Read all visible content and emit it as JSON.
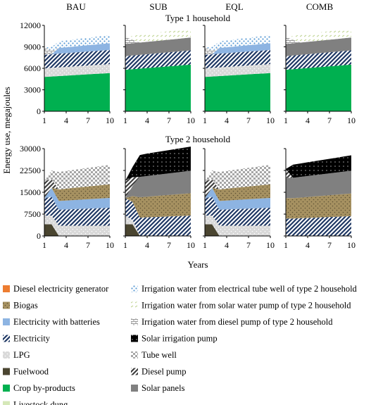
{
  "figure": {
    "y_axis_label": "Energy use, megajoules",
    "x_axis_label": "Years",
    "scenarios": [
      "BAU",
      "SUB",
      "EQL",
      "COMB"
    ]
  },
  "patterns": {
    "diesel_generator": {
      "fill": "#ED7D31",
      "style": "solid"
    },
    "biogas": {
      "fill": "#A69161",
      "style": "dots",
      "dot": "#5E5134"
    },
    "elec_batteries": {
      "fill": "#8DB4E2",
      "style": "solid"
    },
    "electricity": {
      "fill": "#1F3864",
      "style": "diag-stripe"
    },
    "lpg": {
      "fill": "#D9D9D9",
      "style": "dots",
      "dot": "#FFFFFF"
    },
    "fuelwood": {
      "fill": "#4A4530",
      "style": "solid"
    },
    "crop": {
      "fill": "#00B050",
      "style": "solid"
    },
    "dung": {
      "fill": "#D5E8B8",
      "style": "solid"
    },
    "irr_electric": {
      "fill": "#5B9BD5",
      "style": "dots-light"
    },
    "irr_solar": {
      "fill": "#C4D79B",
      "style": "dashes"
    },
    "irr_diesel": {
      "fill": "#7F7F7F",
      "style": "bricks"
    },
    "solar_pump": {
      "fill": "#000000",
      "style": "dots-dark"
    },
    "tube_well": {
      "fill": "#A6A6A6",
      "style": "checker"
    },
    "diesel_pump": {
      "fill": "#404040",
      "style": "diag-stripe-dark"
    },
    "solar_panels": {
      "fill": "#808080",
      "style": "solid"
    }
  },
  "legend": {
    "left": [
      {
        "key": "diesel_generator",
        "label": "Diesel electricity generator"
      },
      {
        "key": "biogas",
        "label": "Biogas"
      },
      {
        "key": "elec_batteries",
        "label": "Electricity with batteries"
      },
      {
        "key": "electricity",
        "label": "Electricity"
      },
      {
        "key": "lpg",
        "label": "LPG"
      },
      {
        "key": "fuelwood",
        "label": "Fuelwood"
      },
      {
        "key": "crop",
        "label": "Crop by-products"
      },
      {
        "key": "dung",
        "label": "Livestock dung"
      }
    ],
    "right": [
      {
        "key": "irr_electric",
        "label": "Irrigation water from electrical tube well of type 2 household"
      },
      {
        "key": "irr_solar",
        "label": "Irrigation water from solar water pump of type 2 household"
      },
      {
        "key": "irr_diesel",
        "label": "Irrigation water from diesel pump of type 2 household"
      },
      {
        "key": "solar_pump",
        "label": "Solar irrigation pump"
      },
      {
        "key": "tube_well",
        "label": "Tube well"
      },
      {
        "key": "diesel_pump",
        "label": "Diesel pump"
      },
      {
        "key": "solar_panels",
        "label": "Solar panels"
      }
    ]
  },
  "chart_data": [
    {
      "type": "area",
      "stacked": true,
      "panel_title": "Type 1 household",
      "scenario": "BAU",
      "x": [
        1,
        2,
        3,
        4,
        5,
        6,
        7,
        8,
        9,
        10
      ],
      "xticks": [
        "1",
        "4",
        "7",
        "10"
      ],
      "ylim": [
        0,
        12000
      ],
      "yticks": [
        "0",
        "3000",
        "6000",
        "9000",
        "12000"
      ],
      "series": [
        {
          "key": "crop",
          "values": [
            4800,
            4860,
            4920,
            4980,
            5040,
            5100,
            5160,
            5220,
            5280,
            5340
          ]
        },
        {
          "key": "lpg",
          "values": [
            1200,
            1200,
            1210,
            1210,
            1220,
            1220,
            1230,
            1230,
            1240,
            1240
          ]
        },
        {
          "key": "electricity",
          "values": [
            1900,
            1910,
            1920,
            1930,
            1940,
            1950,
            1960,
            1970,
            1980,
            1990
          ]
        },
        {
          "key": "elec_batteries",
          "values": [
            0,
            0,
            800,
            820,
            840,
            860,
            880,
            900,
            920,
            940
          ]
        },
        {
          "key": "irr_diesel",
          "values": [
            1000,
            500,
            0,
            0,
            0,
            0,
            0,
            0,
            0,
            0
          ]
        },
        {
          "key": "irr_electric",
          "values": [
            0,
            500,
            900,
            950,
            980,
            1010,
            1040,
            1070,
            1100,
            1130
          ]
        }
      ]
    },
    {
      "type": "area",
      "stacked": true,
      "panel_title": "Type 1 household",
      "scenario": "SUB",
      "x": [
        1,
        2,
        3,
        4,
        5,
        6,
        7,
        8,
        9,
        10
      ],
      "xticks": [
        "1",
        "4",
        "7",
        "10"
      ],
      "ylim": [
        0,
        12000
      ],
      "yticks": [
        "0",
        "3000",
        "6000",
        "9000",
        "12000"
      ],
      "series": [
        {
          "key": "crop",
          "values": [
            5800,
            5880,
            5960,
            6040,
            6120,
            6200,
            6280,
            6360,
            6440,
            6520
          ]
        },
        {
          "key": "electricity",
          "values": [
            1900,
            1910,
            1920,
            1930,
            1940,
            1950,
            1960,
            1970,
            1980,
            1990
          ]
        },
        {
          "key": "solar_panels",
          "values": [
            1700,
            1710,
            1720,
            1730,
            1740,
            1750,
            1760,
            1770,
            1780,
            1790
          ]
        },
        {
          "key": "irr_diesel",
          "values": [
            1000,
            500,
            0,
            0,
            0,
            0,
            0,
            0,
            0,
            0
          ]
        },
        {
          "key": "irr_solar",
          "values": [
            0,
            500,
            1100,
            1120,
            1140,
            1160,
            1180,
            1200,
            1220,
            1240
          ]
        }
      ]
    },
    {
      "type": "area",
      "stacked": true,
      "panel_title": "Type 1 household",
      "scenario": "EQL",
      "x": [
        1,
        2,
        3,
        4,
        5,
        6,
        7,
        8,
        9,
        10
      ],
      "xticks": [
        "1",
        "4",
        "7",
        "10"
      ],
      "ylim": [
        0,
        12000
      ],
      "yticks": [
        "0",
        "3000",
        "6000",
        "9000",
        "12000"
      ],
      "series": [
        {
          "key": "crop",
          "values": [
            4800,
            4860,
            4920,
            4980,
            5040,
            5100,
            5160,
            5220,
            5280,
            5340
          ]
        },
        {
          "key": "lpg",
          "values": [
            1200,
            1200,
            1210,
            1210,
            1220,
            1220,
            1230,
            1230,
            1240,
            1240
          ]
        },
        {
          "key": "electricity",
          "values": [
            1900,
            1910,
            1920,
            1930,
            1940,
            1950,
            1960,
            1970,
            1980,
            1990
          ]
        },
        {
          "key": "elec_batteries",
          "values": [
            0,
            0,
            800,
            820,
            840,
            860,
            880,
            900,
            920,
            940
          ]
        },
        {
          "key": "irr_diesel",
          "values": [
            1000,
            500,
            0,
            0,
            0,
            0,
            0,
            0,
            0,
            0
          ]
        },
        {
          "key": "irr_electric",
          "values": [
            0,
            500,
            900,
            950,
            980,
            1010,
            1040,
            1070,
            1100,
            1130
          ]
        }
      ]
    },
    {
      "type": "area",
      "stacked": true,
      "panel_title": "Type 1 household",
      "scenario": "COMB",
      "x": [
        1,
        2,
        3,
        4,
        5,
        6,
        7,
        8,
        9,
        10
      ],
      "xticks": [
        "1",
        "4",
        "7",
        "10"
      ],
      "ylim": [
        0,
        12000
      ],
      "yticks": [
        "0",
        "3000",
        "6000",
        "9000",
        "12000"
      ],
      "series": [
        {
          "key": "crop",
          "values": [
            5800,
            5880,
            5960,
            6040,
            6120,
            6200,
            6280,
            6360,
            6440,
            6520
          ]
        },
        {
          "key": "electricity",
          "values": [
            1900,
            1910,
            1920,
            1930,
            1940,
            1950,
            1960,
            1970,
            1980,
            1990
          ]
        },
        {
          "key": "solar_panels",
          "values": [
            1700,
            1710,
            1720,
            1730,
            1740,
            1750,
            1760,
            1770,
            1780,
            1790
          ]
        },
        {
          "key": "irr_diesel",
          "values": [
            1000,
            500,
            0,
            0,
            0,
            0,
            0,
            0,
            0,
            0
          ]
        },
        {
          "key": "irr_solar",
          "values": [
            0,
            500,
            1100,
            1120,
            1140,
            1160,
            1180,
            1200,
            1220,
            1240
          ]
        }
      ]
    },
    {
      "type": "area",
      "stacked": true,
      "panel_title": "Type 2 household",
      "scenario": "BAU",
      "x": [
        1,
        2,
        3,
        4,
        5,
        6,
        7,
        8,
        9,
        10
      ],
      "xticks": [
        "1",
        "4",
        "7",
        "10"
      ],
      "ylim": [
        0,
        30000
      ],
      "yticks": [
        "0",
        "7500",
        "15000",
        "22500",
        "30000"
      ],
      "series": [
        {
          "key": "fuelwood",
          "values": [
            4000,
            4000,
            0,
            0,
            0,
            0,
            0,
            0,
            0,
            0
          ]
        },
        {
          "key": "lpg",
          "values": [
            3000,
            3000,
            3500,
            3500,
            3500,
            3500,
            3500,
            3500,
            3500,
            3500
          ]
        },
        {
          "key": "electricity",
          "values": [
            6000,
            6500,
            5500,
            5600,
            5700,
            5800,
            5900,
            6000,
            6100,
            6200
          ]
        },
        {
          "key": "elec_batteries",
          "values": [
            0,
            3000,
            3000,
            3050,
            3100,
            3150,
            3200,
            3250,
            3300,
            3350
          ]
        },
        {
          "key": "biogas",
          "values": [
            0,
            0,
            4000,
            4100,
            4200,
            4300,
            4400,
            4500,
            4600,
            4700
          ]
        },
        {
          "key": "diesel_pump",
          "values": [
            6000,
            3000,
            0,
            0,
            0,
            0,
            0,
            0,
            0,
            0
          ]
        },
        {
          "key": "tube_well",
          "values": [
            0,
            3000,
            6000,
            6100,
            6200,
            6300,
            6400,
            6500,
            6600,
            6700
          ]
        }
      ]
    },
    {
      "type": "area",
      "stacked": true,
      "panel_title": "Type 2 household",
      "scenario": "SUB",
      "x": [
        1,
        2,
        3,
        4,
        5,
        6,
        7,
        8,
        9,
        10
      ],
      "xticks": [
        "1",
        "4",
        "7",
        "10"
      ],
      "ylim": [
        0,
        30000
      ],
      "yticks": [
        "0",
        "7500",
        "15000",
        "22500",
        "30000"
      ],
      "series": [
        {
          "key": "fuelwood",
          "values": [
            4000,
            4000,
            0,
            0,
            0,
            0,
            0,
            0,
            0,
            0
          ]
        },
        {
          "key": "lpg",
          "values": [
            3000,
            1500,
            0,
            0,
            0,
            0,
            0,
            0,
            0,
            0
          ]
        },
        {
          "key": "electricity",
          "values": [
            6000,
            6200,
            6300,
            6400,
            6500,
            6600,
            6700,
            6800,
            6900,
            7000
          ]
        },
        {
          "key": "biogas",
          "values": [
            0,
            2000,
            7000,
            7100,
            7200,
            7300,
            7400,
            7500,
            7600,
            7700
          ]
        },
        {
          "key": "solar_panels",
          "values": [
            0,
            3500,
            7000,
            7100,
            7200,
            7300,
            7400,
            7500,
            7600,
            7700
          ]
        },
        {
          "key": "diesel_pump",
          "values": [
            6000,
            3000,
            0,
            0,
            0,
            0,
            0,
            0,
            0,
            0
          ]
        },
        {
          "key": "solar_pump",
          "values": [
            0,
            3500,
            7500,
            7700,
            7800,
            7900,
            8000,
            8100,
            8200,
            8300
          ]
        }
      ]
    },
    {
      "type": "area",
      "stacked": true,
      "panel_title": "Type 2 household",
      "scenario": "EQL",
      "x": [
        1,
        2,
        3,
        4,
        5,
        6,
        7,
        8,
        9,
        10
      ],
      "xticks": [
        "1",
        "4",
        "7",
        "10"
      ],
      "ylim": [
        0,
        30000
      ],
      "yticks": [
        "0",
        "7500",
        "15000",
        "22500",
        "30000"
      ],
      "series": [
        {
          "key": "fuelwood",
          "values": [
            4000,
            4000,
            0,
            0,
            0,
            0,
            0,
            0,
            0,
            0
          ]
        },
        {
          "key": "lpg",
          "values": [
            3000,
            3000,
            3500,
            3500,
            3500,
            3500,
            3500,
            3500,
            3500,
            3500
          ]
        },
        {
          "key": "electricity",
          "values": [
            6000,
            6500,
            5500,
            5600,
            5700,
            5800,
            5900,
            6000,
            6100,
            6200
          ]
        },
        {
          "key": "elec_batteries",
          "values": [
            0,
            3000,
            3000,
            3050,
            3100,
            3150,
            3200,
            3250,
            3300,
            3350
          ]
        },
        {
          "key": "biogas",
          "values": [
            0,
            0,
            4000,
            4100,
            4200,
            4300,
            4400,
            4500,
            4600,
            4700
          ]
        },
        {
          "key": "diesel_pump",
          "values": [
            6000,
            3000,
            0,
            0,
            0,
            0,
            0,
            0,
            0,
            0
          ]
        },
        {
          "key": "tube_well",
          "values": [
            0,
            3000,
            6000,
            6100,
            6200,
            6300,
            6400,
            6500,
            6600,
            6700
          ]
        }
      ]
    },
    {
      "type": "area",
      "stacked": true,
      "panel_title": "Type 2 household",
      "scenario": "COMB",
      "x": [
        1,
        2,
        3,
        4,
        5,
        6,
        7,
        8,
        9,
        10
      ],
      "xticks": [
        "1",
        "4",
        "7",
        "10"
      ],
      "ylim": [
        0,
        30000
      ],
      "yticks": [
        "0",
        "7500",
        "15000",
        "22500",
        "30000"
      ],
      "series": [
        {
          "key": "electricity",
          "values": [
            6000,
            6000,
            6100,
            6200,
            6300,
            6400,
            6500,
            6600,
            6700,
            6800
          ]
        },
        {
          "key": "biogas",
          "values": [
            7000,
            7000,
            7100,
            7200,
            7300,
            7400,
            7500,
            7600,
            7700,
            7800
          ]
        },
        {
          "key": "solar_panels",
          "values": [
            7000,
            7000,
            7100,
            7200,
            7300,
            7400,
            7500,
            7600,
            7700,
            7800
          ]
        },
        {
          "key": "diesel_pump",
          "values": [
            3000,
            0,
            0,
            0,
            0,
            0,
            0,
            0,
            0,
            0
          ]
        },
        {
          "key": "solar_pump",
          "values": [
            0,
            4500,
            4600,
            4700,
            4800,
            4900,
            5000,
            5100,
            5200,
            5300
          ]
        }
      ]
    }
  ]
}
